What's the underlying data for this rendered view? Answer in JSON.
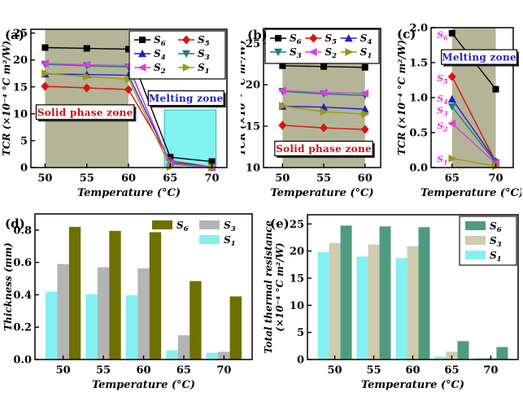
{
  "figure": {
    "background": "#ffffff",
    "zone_color": "#b3b596"
  },
  "chart_data": [
    {
      "id": "a",
      "panel_label": "(a)",
      "type": "line",
      "xlabel": "Temperature (°C)",
      "ylabel": "TCR (×10⁻⁴ °C m²/W)",
      "x": [
        50,
        55,
        60,
        65,
        70
      ],
      "xlim": [
        48.3,
        71.8
      ],
      "ylim": [
        0,
        25.7
      ],
      "xticks": [
        50,
        55,
        60,
        65,
        70
      ],
      "yticks": [
        0,
        5,
        10,
        15,
        20,
        25
      ],
      "ytick_decimals": 0,
      "series": [
        {
          "name": "S6",
          "color": "#000000",
          "marker": "square",
          "values": [
            22.3,
            22.15,
            22.0,
            1.92,
            1.12
          ]
        },
        {
          "name": "S5",
          "color": "#e01010",
          "marker": "diamond",
          "values": [
            15.1,
            14.8,
            14.5,
            1.3,
            0.08
          ]
        },
        {
          "name": "S4",
          "color": "#2020c8",
          "marker": "triangle-up",
          "values": [
            17.4,
            17.3,
            17.15,
            0.98,
            0.09
          ]
        },
        {
          "name": "S3",
          "color": "#168080",
          "marker": "triangle-down",
          "values": [
            19.2,
            18.9,
            18.7,
            0.87,
            0.07
          ]
        },
        {
          "name": "S2",
          "color": "#e03ce0",
          "marker": "triangle-left",
          "values": [
            19.35,
            19.1,
            18.95,
            0.63,
            0.06
          ]
        },
        {
          "name": "S1",
          "color": "#9a9a10",
          "marker": "triangle-right",
          "values": [
            17.5,
            16.9,
            16.45,
            0.13,
            0.02
          ]
        }
      ],
      "zones": [
        {
          "x0": 50,
          "x1": 60,
          "color": "#b3b596"
        }
      ],
      "shapes": [
        {
          "type": "rect",
          "x0": 64.3,
          "x1": 70.5,
          "y0": 0,
          "y1": 10.7,
          "fill": "#80f2f0",
          "stroke": "#2ab8b8"
        }
      ],
      "annotations": [
        {
          "text": "Solid phase zone",
          "color": "#cc1111",
          "x": 54.8,
          "y": 10.3
        },
        {
          "text": "Melting zone",
          "color": "#2222cc",
          "x": 66.9,
          "y": 12.9
        }
      ],
      "legend": {
        "position": "top-right",
        "cols": 2,
        "boxed": true,
        "order": [
          "S6",
          "S5",
          "S4",
          "S3",
          "S2",
          "S1"
        ]
      }
    },
    {
      "id": "b",
      "panel_label": "(b)",
      "type": "line",
      "xlabel": "Temperature (°C)",
      "ylabel": "TCR (×10⁻⁴ °C m²/W)",
      "x": [
        50,
        55,
        60
      ],
      "xlim": [
        47.7,
        61.9
      ],
      "ylim": [
        10,
        26.8
      ],
      "xticks": [
        50,
        55,
        60
      ],
      "yticks": [
        10,
        15,
        20,
        25
      ],
      "ytick_decimals": 0,
      "series": [
        {
          "name": "S6",
          "color": "#000000",
          "marker": "square",
          "values": [
            22.3,
            22.2,
            22.1
          ]
        },
        {
          "name": "S5",
          "color": "#e01010",
          "marker": "diamond",
          "values": [
            15.1,
            14.8,
            14.6
          ]
        },
        {
          "name": "S4",
          "color": "#2020c8",
          "marker": "triangle-up",
          "values": [
            17.4,
            17.3,
            17.05
          ]
        },
        {
          "name": "S3",
          "color": "#168080",
          "marker": "triangle-down",
          "values": [
            19.2,
            18.9,
            18.7
          ]
        },
        {
          "name": "S2",
          "color": "#e03ce0",
          "marker": "triangle-left",
          "values": [
            19.3,
            19.05,
            18.95
          ]
        },
        {
          "name": "S1",
          "color": "#9a9a10",
          "marker": "triangle-right",
          "values": [
            17.45,
            16.75,
            16.45
          ]
        }
      ],
      "zones": [
        {
          "x0": 50,
          "x1": 60,
          "color": "#b3b596"
        }
      ],
      "shapes": [],
      "annotations": [
        {
          "text": "Solid phase zone",
          "color": "#cc1111",
          "x": 55,
          "y": 12.3
        }
      ],
      "legend": {
        "position": "top-span",
        "cols": 3,
        "boxed": true,
        "order": [
          "S6",
          "S5",
          "S4",
          "S3",
          "S2",
          "S1"
        ]
      }
    },
    {
      "id": "c",
      "panel_label": "(c)",
      "type": "line",
      "xlabel": "Temperature (°C)",
      "ylabel": "TCR (×10⁻⁴ °C m²/W)",
      "x": [
        65,
        70
      ],
      "xlim": [
        62.6,
        72.0
      ],
      "ylim": [
        0,
        2.0
      ],
      "xticks": [
        65,
        70
      ],
      "yticks": [
        0,
        0.5,
        1.0,
        1.5,
        2.0
      ],
      "ytick_decimals": 1,
      "series": [
        {
          "name": "S6",
          "color": "#000000",
          "marker": "square",
          "values": [
            1.92,
            1.12
          ]
        },
        {
          "name": "S5",
          "color": "#e01010",
          "marker": "diamond",
          "values": [
            1.3,
            0.08
          ]
        },
        {
          "name": "S4",
          "color": "#2020c8",
          "marker": "triangle-up",
          "values": [
            0.98,
            0.09
          ]
        },
        {
          "name": "S3",
          "color": "#168080",
          "marker": "triangle-down",
          "values": [
            0.87,
            0.07
          ]
        },
        {
          "name": "S2",
          "color": "#e03ce0",
          "marker": "triangle-left",
          "values": [
            0.63,
            0.06
          ]
        },
        {
          "name": "S1",
          "color": "#9a9a10",
          "marker": "triangle-right",
          "values": [
            0.13,
            0.02
          ]
        }
      ],
      "zones": [
        {
          "x0": 65,
          "x1": 70,
          "color": "#b3b596"
        }
      ],
      "shapes": [],
      "annotations": [
        {
          "text": "Melting zone",
          "color": "#2222cc",
          "x": 68.1,
          "y": 1.58
        }
      ],
      "series_labels": [
        {
          "text": "S6",
          "x": 63.9,
          "y": 1.9,
          "color": "#e03ce0"
        },
        {
          "text": "S5",
          "x": 63.9,
          "y": 1.28,
          "color": "#e03ce0"
        },
        {
          "text": "S4",
          "x": 63.9,
          "y": 0.99,
          "color": "#e03ce0"
        },
        {
          "text": "S3",
          "x": 63.9,
          "y": 0.82,
          "color": "#e03ce0"
        },
        {
          "text": "S2",
          "x": 63.9,
          "y": 0.6,
          "color": "#e03ce0"
        },
        {
          "text": "S1",
          "x": 63.9,
          "y": 0.12,
          "color": "#e03ce0"
        }
      ],
      "legend": null
    },
    {
      "id": "d",
      "panel_label": "(d)",
      "type": "bar",
      "xlabel": "Temperature (°C)",
      "ylabel": "Thickness (mm)",
      "categories": [
        "50",
        "55",
        "60",
        "65",
        "70"
      ],
      "ylim": [
        0,
        0.9
      ],
      "yticks": [
        0,
        0.2,
        0.4,
        0.6,
        0.8
      ],
      "ytick_decimals": 1,
      "series": [
        {
          "name": "S1",
          "color": "#84f0f0",
          "values": [
            0.42,
            0.405,
            0.397,
            0.057,
            0.042
          ]
        },
        {
          "name": "S3",
          "color": "#b4b4b4",
          "values": [
            0.59,
            0.57,
            0.563,
            0.15,
            0.048
          ]
        },
        {
          "name": "S6",
          "color": "#6f7000",
          "values": [
            0.82,
            0.795,
            0.787,
            0.485,
            0.39
          ]
        }
      ],
      "legend": {
        "position": "top-right",
        "boxed": false,
        "grid": [
          [
            "S6",
            "S3"
          ],
          [
            null,
            "S1"
          ]
        ]
      }
    },
    {
      "id": "e",
      "panel_label": "(e)",
      "type": "bar",
      "xlabel": "Temperature (°C)",
      "ylabel_lines": [
        "Total thermal resistance",
        "(×10⁻⁴ °C m²/W)"
      ],
      "categories": [
        "50",
        "55",
        "60",
        "65",
        "70"
      ],
      "ylim": [
        0,
        26.7
      ],
      "yticks": [
        0,
        5,
        10,
        15,
        20,
        25
      ],
      "ytick_decimals": 0,
      "series": [
        {
          "name": "S1",
          "color": "#84f0f0",
          "values": [
            19.8,
            19.0,
            18.7,
            0.55,
            0.3
          ]
        },
        {
          "name": "S3",
          "color": "#cfccae",
          "values": [
            21.5,
            21.2,
            20.9,
            1.45,
            0.35
          ]
        },
        {
          "name": "S6",
          "color": "#4e9b82",
          "values": [
            24.7,
            24.55,
            24.4,
            3.4,
            2.3
          ]
        }
      ],
      "legend": {
        "position": "top-right",
        "boxed": true,
        "grid": [
          [
            "S6"
          ],
          [
            "S3"
          ],
          [
            "S1"
          ]
        ]
      }
    }
  ]
}
